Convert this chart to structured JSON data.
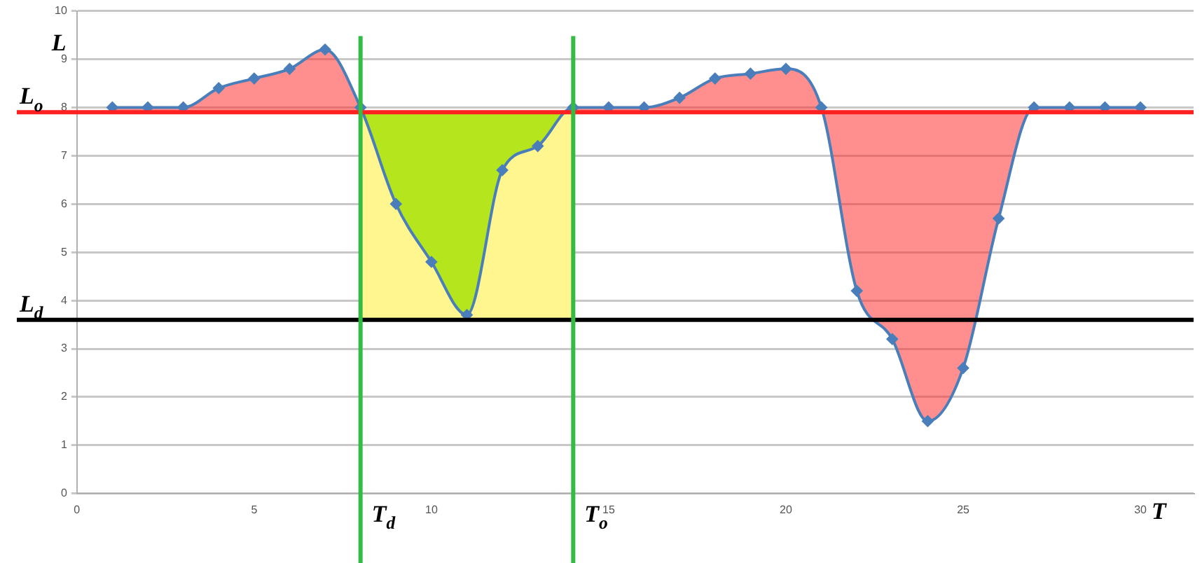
{
  "chart_data": {
    "type": "line",
    "xlabel": "T",
    "ylabel": "L",
    "x": [
      1,
      2,
      3,
      4,
      5,
      6,
      7,
      8,
      9,
      10,
      11,
      12,
      13,
      14,
      15,
      16,
      17,
      18,
      19,
      20,
      21,
      22,
      23,
      24,
      25,
      26,
      27,
      28,
      29,
      30
    ],
    "series": [
      {
        "color": "#4a7ebb",
        "values": [
          8,
          8,
          8,
          8.4,
          8.6,
          8.8,
          9.2,
          8,
          6,
          4.8,
          3.7,
          6.7,
          7.2,
          8,
          8,
          8,
          8.2,
          8.6,
          8.7,
          8.8,
          8,
          4.2,
          3.2,
          1.5,
          2.6,
          5.7,
          8,
          8,
          8,
          8
        ]
      }
    ],
    "xlim": [
      0,
      31.5
    ],
    "xticks": [
      0,
      5,
      10,
      15,
      20,
      25,
      30
    ],
    "ylim": [
      0,
      10
    ],
    "yticks": [
      0,
      1,
      2,
      3,
      4,
      5,
      6,
      7,
      8,
      9,
      10
    ],
    "ref_lines": [
      {
        "axis": "y",
        "value": 7.9,
        "label": "L$_{o}$",
        "color": "#ff2020"
      },
      {
        "axis": "y",
        "value": 3.6,
        "label": "L$_{d}$",
        "color": "#000000"
      },
      {
        "axis": "x",
        "value": 8,
        "label": "T$_{d}$",
        "color": "#33bb44"
      },
      {
        "axis": "x",
        "value": 14,
        "label": "T$_{o}$",
        "color": "#33bb44"
      }
    ],
    "bands": [
      {
        "axis": "x",
        "from": 8,
        "to": 14,
        "color": "#fff68f"
      }
    ],
    "grid": "y",
    "marker": "diamond",
    "line_style": "solid",
    "legend": false
  }
}
